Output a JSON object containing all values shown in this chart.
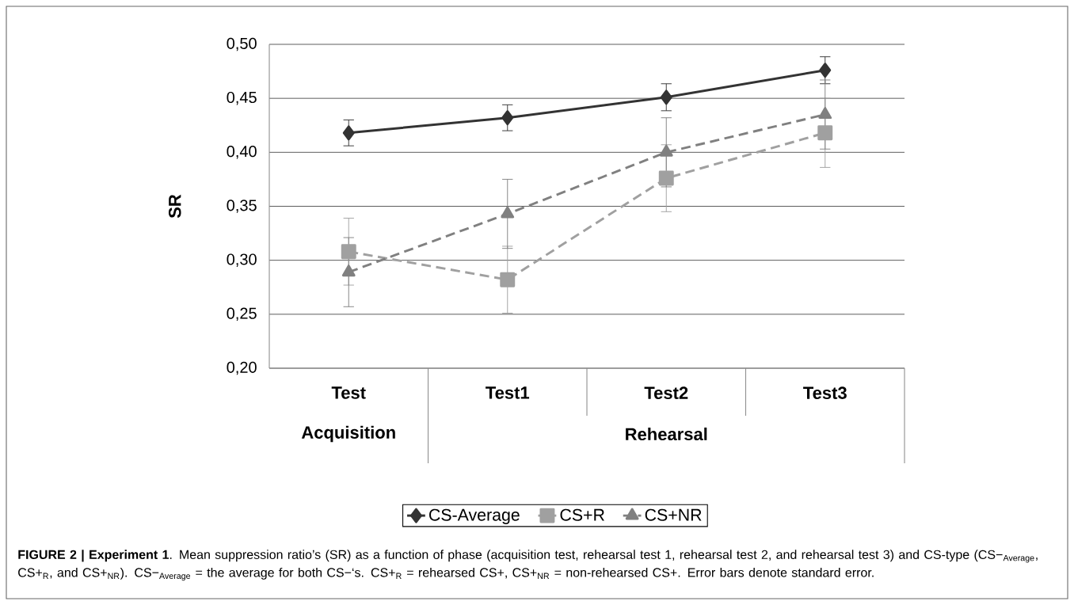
{
  "chart_data": {
    "type": "line",
    "ylabel": "SR",
    "categories": [
      "Test",
      "Test1",
      "Test2",
      "Test3"
    ],
    "series": [
      {
        "name": "CS-Average",
        "color": "#333333",
        "marker": "diamond",
        "line_style": "solid",
        "values": [
          0.418,
          0.432,
          0.451,
          0.476
        ],
        "errors": [
          0.012,
          0.012,
          0.0125,
          0.0125
        ]
      },
      {
        "name": "CS+R",
        "color": "#a0a0a0",
        "marker": "square",
        "line_style": "dashed",
        "values": [
          0.308,
          0.282,
          0.376,
          0.418
        ],
        "errors": [
          0.031,
          0.031,
          0.031,
          0.032
        ]
      },
      {
        "name": "CS+NR",
        "color": "#808080",
        "marker": "triangle",
        "line_style": "dashed",
        "values": [
          0.289,
          0.343,
          0.4,
          0.435
        ],
        "errors": [
          0.032,
          0.032,
          0.032,
          0.032
        ]
      }
    ],
    "ylim": [
      0.2,
      0.5
    ],
    "yticks": [
      {
        "value": 0.2,
        "label": "0,20"
      },
      {
        "value": 0.25,
        "label": "0,25"
      },
      {
        "value": 0.3,
        "label": "0,30"
      },
      {
        "value": 0.35,
        "label": "0,35"
      },
      {
        "value": 0.4,
        "label": "0,40"
      },
      {
        "value": 0.45,
        "label": "0,45"
      },
      {
        "value": 0.5,
        "label": "0,50"
      }
    ],
    "grid": "y",
    "legend": "bottom",
    "annotations": [
      "Acquisition",
      "Rehearsal",
      "**FIGURE 2 | Experiment 1**. Mean suppression ratio’s (SR) as a function of phase (acquisition test, rehearsal test 1, rehearsal test 2, and rehearsal test 3) and CS-type (CS−$_{Average}$, CS+$_{R}$, and CS+$_{NR}$). CS−$_{Average}$ = the average for both CS−‘s. CS+$_{R}$ = rehearsed CS+, CS+$_{NR}$ = non-rehearsed CS+. Error bars denote standard error."
    ]
  }
}
